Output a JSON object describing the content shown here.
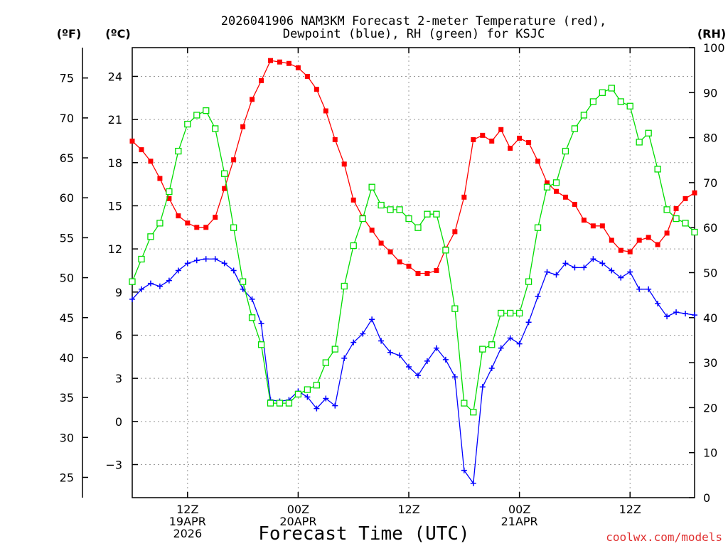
{
  "chart_data": {
    "type": "line",
    "title_line1": "2026041906 NAM3KM Forecast 2-meter Temperature (red),",
    "title_line2": "Dewpoint (blue), RH (green) for KSJC",
    "xlabel": "Forecast Time (UTC)",
    "credit": "coolwx.com/models",
    "unit_f": "(ºF)",
    "unit_c": "(ºC)",
    "unit_rh": "(RH)",
    "hours_start": 0,
    "hours_end": 61,
    "ylim_c": [
      -5.3,
      26
    ],
    "ylim_rh": [
      0,
      100
    ],
    "grid": "dotted",
    "x_ticks": [
      {
        "hour": 6,
        "lines": [
          "12Z",
          "19APR",
          "2026"
        ]
      },
      {
        "hour": 18,
        "lines": [
          "00Z",
          "20APR"
        ]
      },
      {
        "hour": 30,
        "lines": [
          "12Z"
        ]
      },
      {
        "hour": 42,
        "lines": [
          "00Z",
          "21APR"
        ]
      },
      {
        "hour": 54,
        "lines": [
          "12Z"
        ]
      }
    ],
    "y_ticks_c": [
      "-3",
      "0",
      "3",
      "6",
      "9",
      "12",
      "15",
      "18",
      "21",
      "24"
    ],
    "y_ticks_f": [
      "25",
      "30",
      "35",
      "40",
      "45",
      "50",
      "55",
      "60",
      "65",
      "70",
      "75"
    ],
    "y_ticks_rh": [
      "0",
      "10",
      "20",
      "30",
      "40",
      "50",
      "60",
      "70",
      "80",
      "90",
      "100"
    ],
    "series": [
      {
        "name": "2-meter Temperature",
        "color": "#ff0000",
        "marker": "filled-square",
        "values": [
          19.5,
          18.9,
          18.1,
          16.9,
          15.5,
          14.3,
          13.8,
          13.5,
          13.5,
          14.2,
          16.2,
          18.2,
          20.5,
          22.4,
          23.7,
          25.1,
          25.0,
          24.9,
          24.6,
          24.0,
          23.1,
          21.6,
          19.6,
          17.9,
          15.4,
          14.2,
          13.3,
          12.4,
          11.8,
          11.1,
          10.8,
          10.3,
          10.3,
          10.5,
          12.0,
          13.2,
          15.6,
          19.6,
          19.9,
          19.5,
          20.3,
          19.0,
          19.7,
          19.4,
          18.1,
          16.6,
          16.0,
          15.6,
          15.1,
          14.0,
          13.6,
          13.6,
          12.6,
          11.9,
          11.8,
          12.6,
          12.8,
          12.3,
          13.1,
          14.8,
          15.5,
          15.9
        ]
      },
      {
        "name": "Dewpoint",
        "color": "#0000ff",
        "marker": "plus",
        "values": [
          8.5,
          9.2,
          9.6,
          9.4,
          9.8,
          10.5,
          11.0,
          11.2,
          11.3,
          11.3,
          11.0,
          10.5,
          9.2,
          8.5,
          6.8,
          1.5,
          1.4,
          1.5,
          2.1,
          1.7,
          0.9,
          1.6,
          1.1,
          4.4,
          5.5,
          6.1,
          7.1,
          5.6,
          4.8,
          4.6,
          3.8,
          3.2,
          4.2,
          5.1,
          4.3,
          3.1,
          -3.4,
          -4.3,
          2.4,
          3.7,
          5.1,
          5.8,
          5.4,
          6.9,
          8.7,
          10.4,
          10.2,
          11.0,
          10.7,
          10.7,
          11.3,
          11.0,
          10.5,
          10.0,
          10.4,
          9.2,
          9.2,
          8.2,
          7.3,
          7.6,
          7.5,
          7.4
        ]
      },
      {
        "name": "RH",
        "color": "#00dd00",
        "marker": "open-square",
        "values": [
          48,
          53,
          58,
          61,
          68,
          77,
          83,
          85,
          86,
          82,
          72,
          60,
          48,
          40,
          34,
          21,
          21,
          21,
          23,
          24,
          25,
          30,
          33,
          47,
          56,
          62,
          69,
          65,
          64,
          64,
          62,
          60,
          63,
          63,
          55,
          42,
          21,
          19,
          33,
          34,
          41,
          41,
          41,
          48,
          60,
          69,
          70,
          77,
          82,
          85,
          88,
          90,
          91,
          88,
          87,
          79,
          81,
          73,
          64,
          62,
          61,
          59
        ]
      }
    ]
  }
}
